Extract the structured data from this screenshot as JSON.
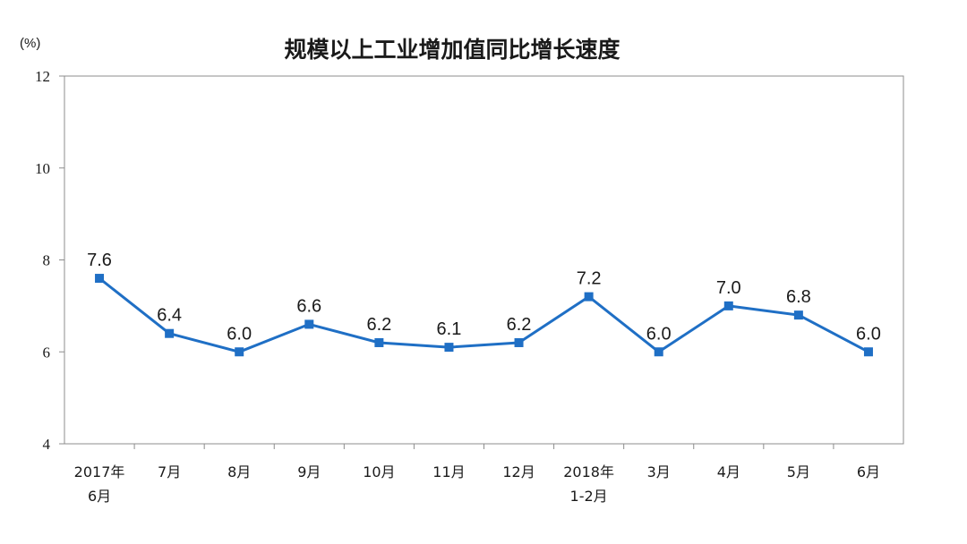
{
  "chart_data": {
    "type": "line",
    "title": "规模以上工业增加值同比增长速度",
    "unit": "(%)",
    "categories": [
      [
        "2017年",
        "6月"
      ],
      [
        "7月"
      ],
      [
        "8月"
      ],
      [
        "9月"
      ],
      [
        "10月"
      ],
      [
        "11月"
      ],
      [
        "12月"
      ],
      [
        "2018年",
        "1-2月"
      ],
      [
        "3月"
      ],
      [
        "4月"
      ],
      [
        "5月"
      ],
      [
        "6月"
      ]
    ],
    "values": [
      7.6,
      6.4,
      6.0,
      6.6,
      6.2,
      6.1,
      6.2,
      7.2,
      6.0,
      7.0,
      6.8,
      6.0
    ],
    "value_labels": [
      "7.6",
      "6.4",
      "6.0",
      "6.6",
      "6.2",
      "6.1",
      "6.2",
      "7.2",
      "6.0",
      "7.0",
      "6.8",
      "6.0"
    ],
    "ylim": [
      4,
      12
    ],
    "yticks": [
      4,
      6,
      8,
      10,
      12
    ],
    "grid": false,
    "line_color": "#1f6fc5",
    "axis_color": "#8c8c8c"
  }
}
